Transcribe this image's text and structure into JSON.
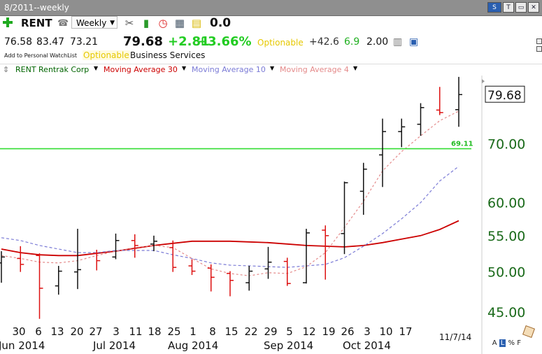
{
  "window": {
    "title": "8/2011--weekly"
  },
  "toolbar": {
    "symbol": "RENT",
    "period": "Weekly",
    "value": "0.0",
    "window_buttons": [
      "S",
      "T",
      "",
      ""
    ]
  },
  "quote": {
    "open": "76.58",
    "high": "83.47",
    "low": "73.21",
    "last": "79.68",
    "change": "+2.81",
    "change_pct": "+3.66%",
    "optionable": "Optionable",
    "stat1": "+42.6",
    "stat2": "6.9",
    "stat3": "2.00",
    "add_watchlist": "Add to Personal WatchList",
    "optionable2": "Optionable",
    "sector": "Business Services"
  },
  "legend": {
    "items": [
      {
        "label": "RENT Rentrak Corp",
        "color": "#006400"
      },
      {
        "label": "Moving Average 30",
        "color": "#cc0000"
      },
      {
        "label": "Moving Average 10",
        "color": "#7b7bd6"
      },
      {
        "label": "Moving Average 4",
        "color": "#e48a8a"
      }
    ]
  },
  "footer": {
    "date": "11/7/14",
    "scale_modes": [
      "A",
      "L",
      "%",
      "F"
    ]
  },
  "chart_data": {
    "type": "ohlc",
    "y_scale": "log",
    "ylim": [
      42.2,
      85
    ],
    "y_ticks": [
      "79.68",
      "70.00",
      "60.00",
      "55.00",
      "50.00",
      "45.00"
    ],
    "x_day_labels": [
      "30",
      "6",
      "13",
      "20",
      "27",
      "3",
      "11",
      "18",
      "25",
      "1",
      "8",
      "15",
      "22",
      "29",
      "5",
      "12",
      "19",
      "26",
      "3",
      "10",
      "17"
    ],
    "x_month_labels": [
      "Jun 2014",
      "Jul 2014",
      "Aug 2014",
      "Sep 2014",
      "Oct 2014"
    ],
    "last_price_label": "79.68",
    "horizontal_line": {
      "value": 69.11,
      "label": "69.11",
      "color": "#33dd33"
    },
    "bars": [
      {
        "high": 52.8,
        "low": 48.6,
        "open": 51.2,
        "close": 52.0,
        "color": "black"
      },
      {
        "high": 53.5,
        "low": 50.0,
        "open": 51.8,
        "close": 51.0,
        "color": "red"
      },
      {
        "high": 52.5,
        "low": 44.2,
        "open": 52.2,
        "close": 47.9,
        "color": "red"
      },
      {
        "high": 50.8,
        "low": 47.1,
        "open": 48.2,
        "close": 50.1,
        "color": "black"
      },
      {
        "high": 56.0,
        "low": 47.8,
        "open": 50.0,
        "close": 50.3,
        "color": "black"
      },
      {
        "high": 53.0,
        "low": 50.2,
        "open": 52.5,
        "close": 51.5,
        "color": "red"
      },
      {
        "high": 55.3,
        "low": 51.7,
        "open": 52.0,
        "close": 54.3,
        "color": "black"
      },
      {
        "high": 55.2,
        "low": 51.9,
        "open": 54.3,
        "close": 53.6,
        "color": "red"
      },
      {
        "high": 55.0,
        "low": 52.8,
        "open": 53.8,
        "close": 54.2,
        "color": "black"
      },
      {
        "high": 54.3,
        "low": 50.0,
        "open": 53.3,
        "close": 50.6,
        "color": "red"
      },
      {
        "high": 51.7,
        "low": 49.6,
        "open": 50.8,
        "close": 50.1,
        "color": "red"
      },
      {
        "high": 51.0,
        "low": 47.5,
        "open": 50.5,
        "close": 49.3,
        "color": "red"
      },
      {
        "high": 50.1,
        "low": 46.9,
        "open": 49.8,
        "close": 48.9,
        "color": "red"
      },
      {
        "high": 50.8,
        "low": 47.6,
        "open": 48.6,
        "close": 50.1,
        "color": "black"
      },
      {
        "high": 53.4,
        "low": 49.1,
        "open": 50.4,
        "close": 51.3,
        "color": "black"
      },
      {
        "high": 51.9,
        "low": 48.2,
        "open": 51.4,
        "close": 48.5,
        "color": "red"
      },
      {
        "high": 56.0,
        "low": 48.5,
        "open": 48.6,
        "close": 55.4,
        "color": "black"
      },
      {
        "high": 56.5,
        "low": 49.0,
        "open": 55.8,
        "close": 55.0,
        "color": "red"
      },
      {
        "high": 63.4,
        "low": 52.4,
        "open": 55.3,
        "close": 63.2,
        "color": "black"
      },
      {
        "high": 66.6,
        "low": 58.1,
        "open": 61.8,
        "close": 65.5,
        "color": "black"
      },
      {
        "high": 74.8,
        "low": 62.5,
        "open": 68.0,
        "close": 72.3,
        "color": "black"
      },
      {
        "high": 74.8,
        "low": 69.4,
        "open": 72.3,
        "close": 73.2,
        "color": "black"
      },
      {
        "high": 77.9,
        "low": 71.5,
        "open": 73.7,
        "close": 77.0,
        "color": "black"
      },
      {
        "high": 81.3,
        "low": 75.5,
        "open": 76.5,
        "close": 76.0,
        "color": "red"
      },
      {
        "high": 83.47,
        "low": 73.21,
        "open": 76.58,
        "close": 79.68,
        "color": "black"
      }
    ],
    "ma30": [
      53.1,
      52.6,
      52.3,
      52.2,
      52.2,
      52.5,
      52.8,
      53.2,
      53.6,
      53.9,
      54.2,
      54.2,
      54.2,
      54.1,
      54.0,
      53.8,
      53.6,
      53.5,
      53.4,
      53.6,
      54.0,
      54.5,
      55.0,
      55.9,
      57.2
    ],
    "ma10": [
      54.7,
      54.3,
      53.6,
      53.1,
      52.6,
      52.6,
      52.9,
      52.9,
      52.9,
      52.3,
      51.8,
      51.2,
      50.9,
      50.8,
      50.7,
      50.6,
      50.8,
      51.0,
      51.9,
      53.5,
      55.3,
      57.5,
      60.0,
      63.5,
      66.0
    ],
    "ma4": [
      52.2,
      51.8,
      51.3,
      51.2,
      51.5,
      52.2,
      52.8,
      53.3,
      53.6,
      53.3,
      51.8,
      50.4,
      49.8,
      49.5,
      49.9,
      49.8,
      50.7,
      52.6,
      56.2,
      60.2,
      65.2,
      68.6,
      71.5,
      74.4,
      76.3
    ]
  }
}
